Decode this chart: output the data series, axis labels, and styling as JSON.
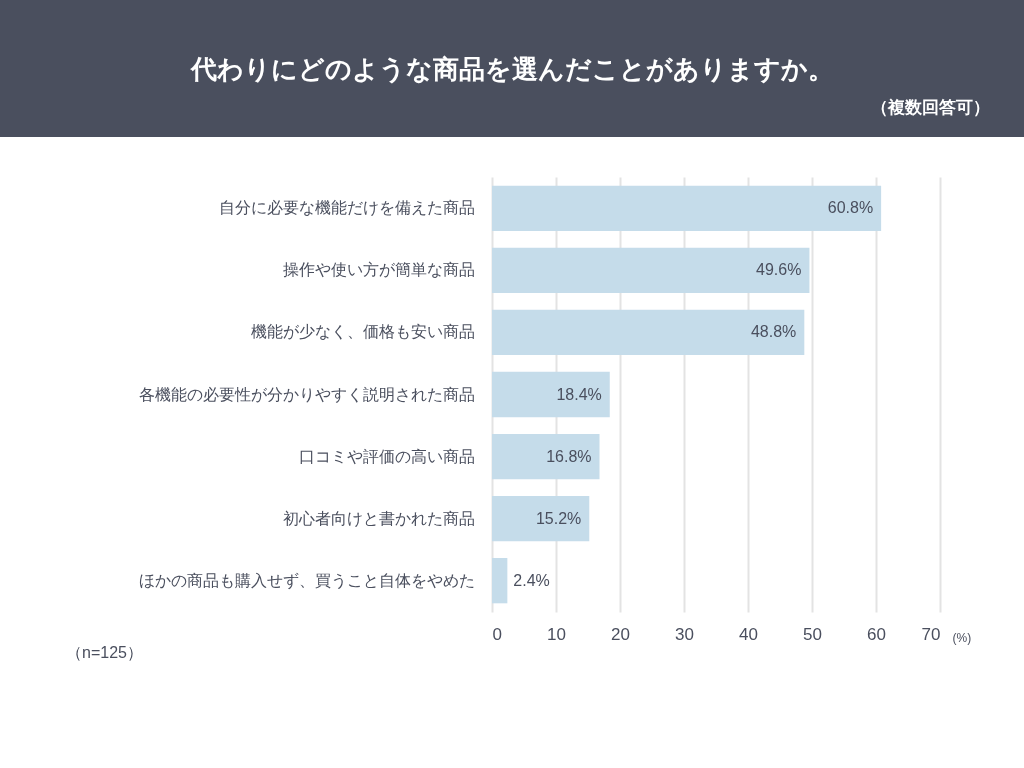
{
  "chart_data": {
    "type": "bar",
    "orientation": "horizontal",
    "title": "代わりにどのような商品を選んだことがありますか。",
    "subtitle": "（複数回答可）",
    "xlabel": "(%)",
    "annotations": [
      "（n=125）"
    ],
    "categories": [
      "自分に必要な機能だけを備えた商品",
      "操作や使い方が簡単な商品",
      "機能が少なく、価格も安い商品",
      "各機能の必要性が分かりやすく説明された商品",
      "口コミや評価の高い商品",
      "初心者向けと書かれた商品",
      "ほかの商品も購入せず、買うこと自体をやめた"
    ],
    "values": [
      60.8,
      49.6,
      48.8,
      18.4,
      16.8,
      15.2,
      2.4
    ],
    "value_labels": [
      "60.8%",
      "49.6%",
      "48.8%",
      "18.4%",
      "16.8%",
      "15.2%",
      "2.4%"
    ],
    "color": "#c5dcea",
    "xlim": [
      0,
      70
    ],
    "xticks": [
      0,
      10,
      20,
      30,
      40,
      50,
      60,
      70
    ],
    "grid": "x"
  }
}
